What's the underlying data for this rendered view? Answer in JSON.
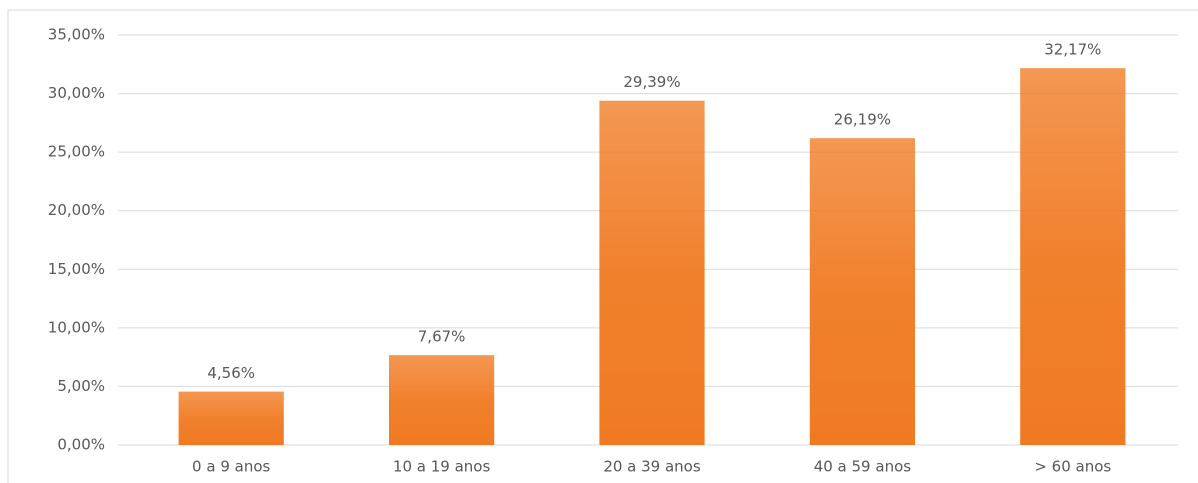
{
  "chart_data": {
    "type": "bar",
    "categories": [
      "0 a 9 anos",
      "10 a 19 anos",
      "20 a 39 anos",
      "40 a 59 anos",
      "> 60 anos"
    ],
    "values": [
      4.56,
      7.67,
      29.39,
      26.19,
      32.17
    ],
    "value_labels": [
      "4,56%",
      "7,67%",
      "29,39%",
      "26,19%",
      "32,17%"
    ],
    "color": "#f07a22",
    "ylim": [
      0,
      35
    ],
    "yticks": [
      {
        "value": 0,
        "label": "0,00%"
      },
      {
        "value": 5,
        "label": "5,00%"
      },
      {
        "value": 10,
        "label": "10,00%"
      },
      {
        "value": 15,
        "label": "15,00%"
      },
      {
        "value": 20,
        "label": "20,00%"
      },
      {
        "value": 25,
        "label": "25,00%"
      },
      {
        "value": 30,
        "label": "30,00%"
      },
      {
        "value": 35,
        "label": "35,00%"
      }
    ],
    "grid": true
  }
}
